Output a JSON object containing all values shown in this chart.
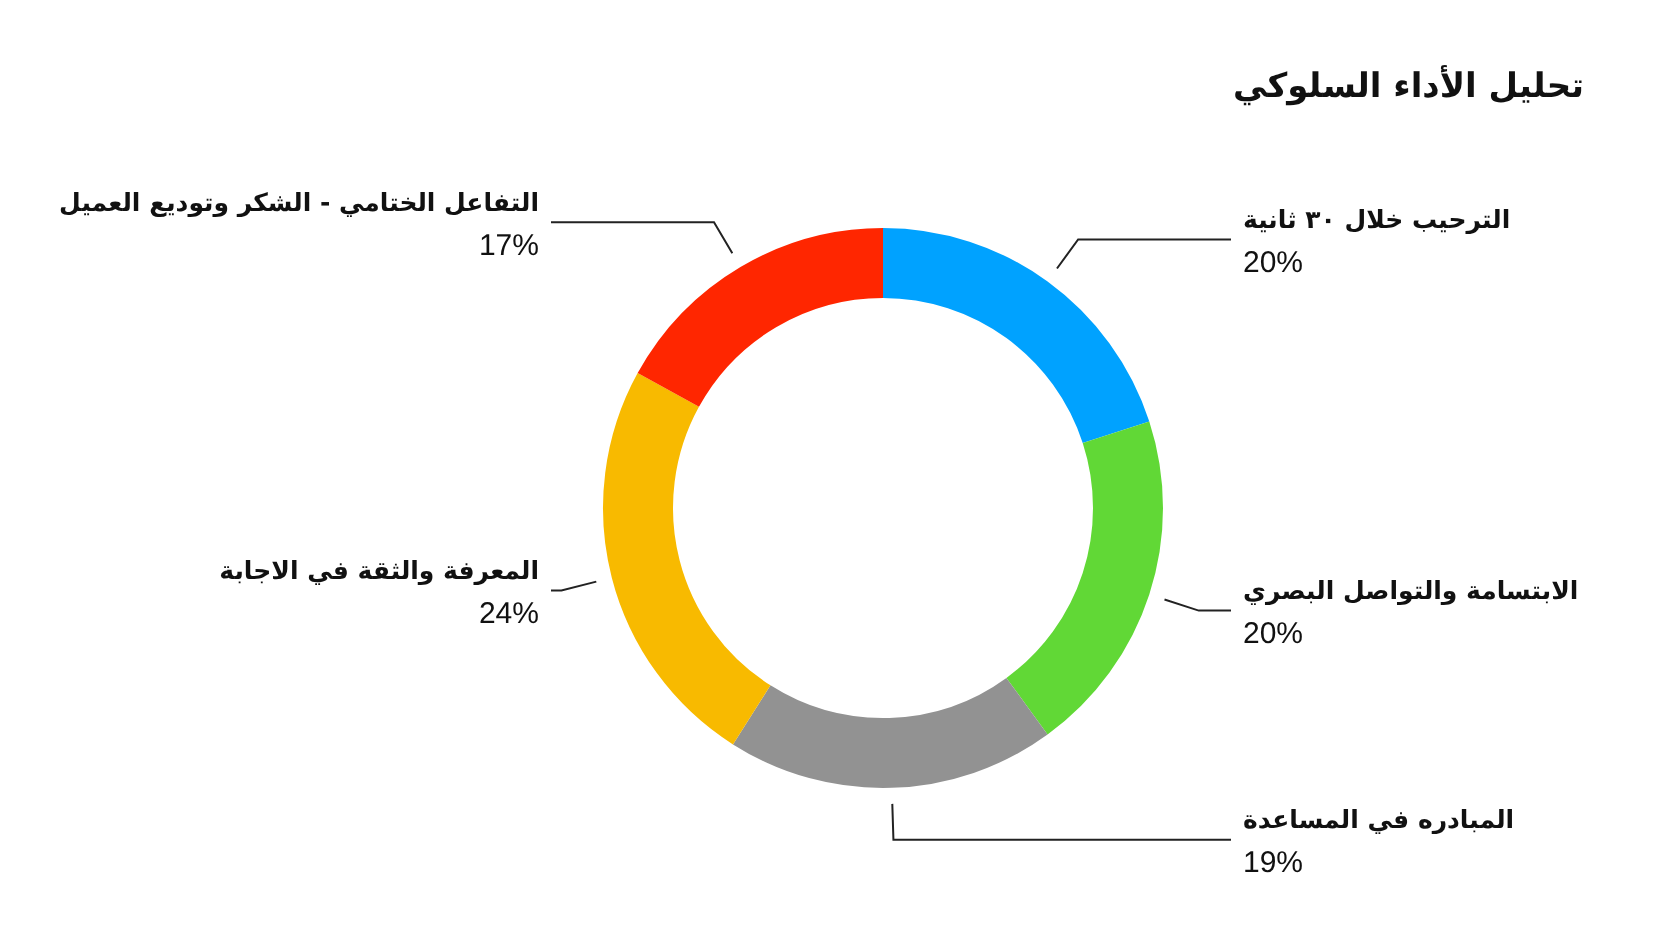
{
  "chart_data": {
    "type": "donut",
    "title": "تحليل الأداء السلوكي",
    "categories": [
      "الترحيب خلال ٣٠ ثانية",
      "الابتسامة والتواصل البصري",
      "المبادره في المساعدة",
      "المعرفة والثقة في الاجابة",
      "التفاعل الختامي - الشكر وتوديع العميل"
    ],
    "values": [
      20,
      20,
      19,
      24,
      17
    ],
    "value_labels": [
      "20%",
      "20%",
      "19%",
      "24%",
      "17%"
    ],
    "colors": [
      "#00a2ff",
      "#61d836",
      "#929292",
      "#f8ba00",
      "#ff2600"
    ],
    "legend": false
  }
}
